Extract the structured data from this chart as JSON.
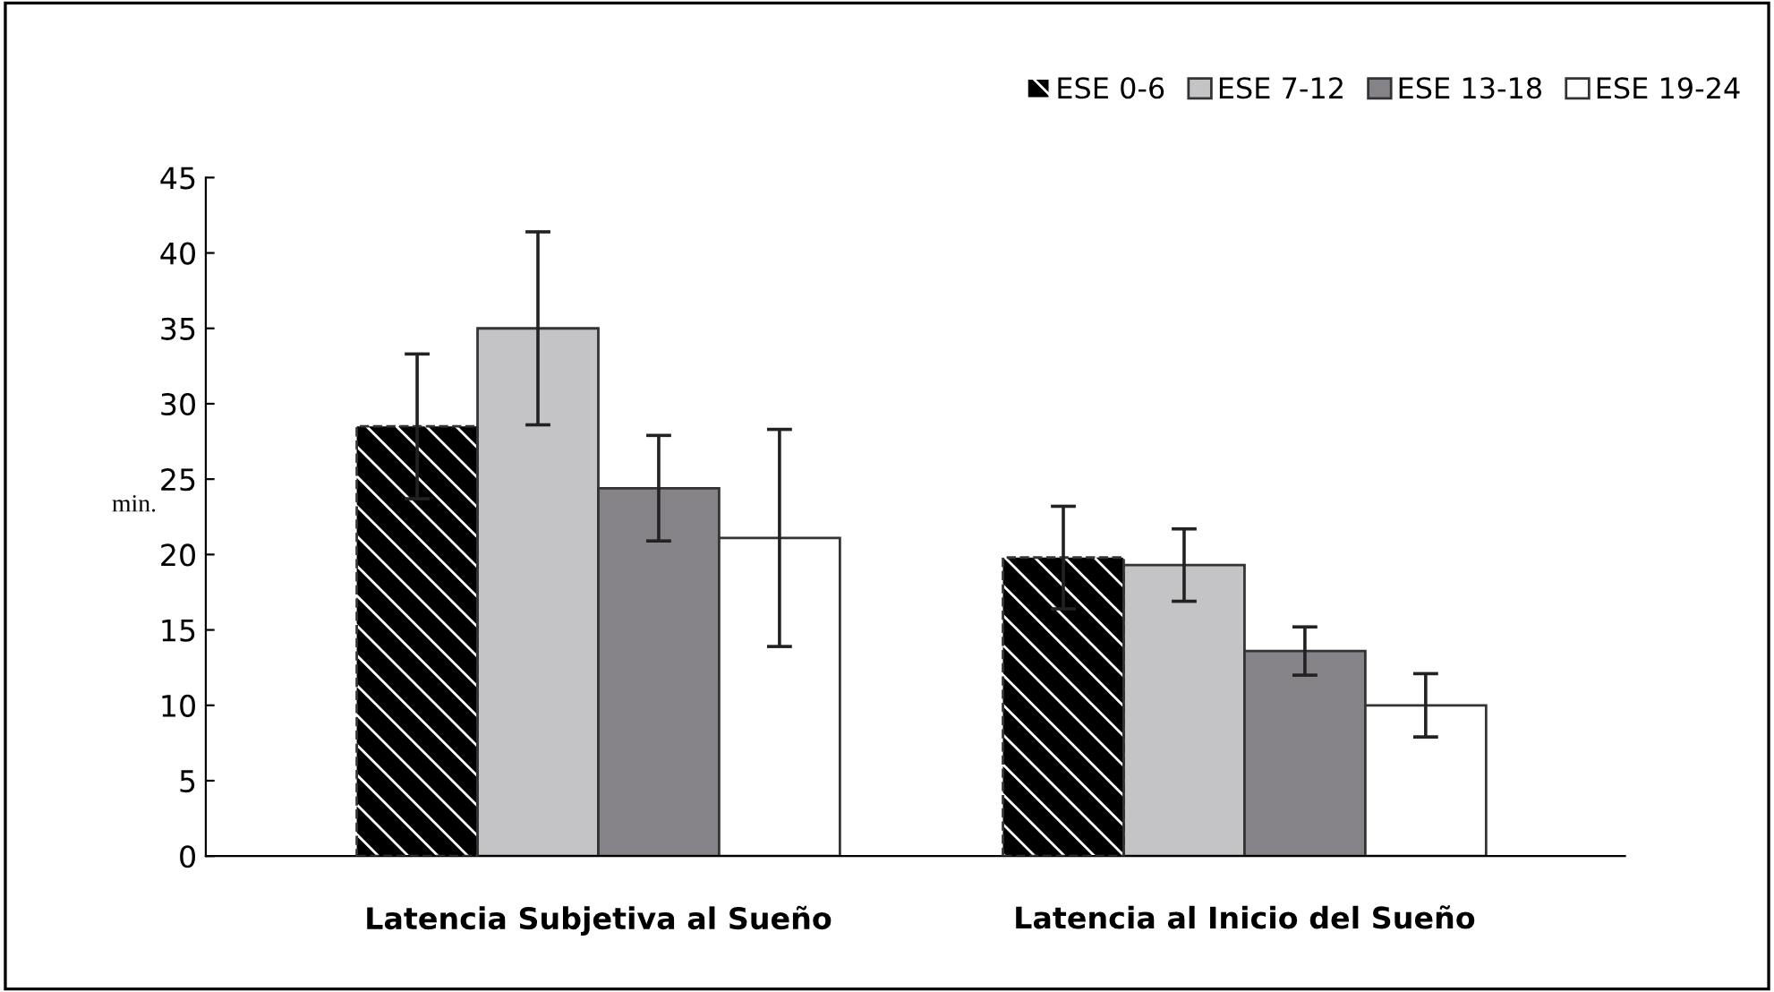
{
  "chart_data": {
    "type": "bar",
    "ylabel": "min.",
    "categories": [
      "Latencia Subjetiva al Sueño",
      "Latencia al Inicio del Sueño"
    ],
    "series": [
      {
        "name": "ESE 0-6",
        "color": "#000000",
        "values": [
          28.5,
          19.8
        ],
        "errors": [
          4.8,
          3.4
        ]
      },
      {
        "name": "ESE 7-12",
        "color": "#c4c3c6",
        "values": [
          35.0,
          19.3
        ],
        "errors": [
          6.4,
          2.4
        ]
      },
      {
        "name": "ESE 13-18",
        "color": "#858387",
        "values": [
          24.4,
          13.6
        ],
        "errors": [
          3.5,
          1.6
        ]
      },
      {
        "name": "ESE 19-24",
        "color": "#ffffff",
        "values": [
          21.1,
          10.0
        ],
        "errors": [
          7.2,
          2.1
        ]
      }
    ],
    "ylim": [
      0,
      45
    ],
    "yticks": [
      0,
      5,
      10,
      15,
      20,
      25,
      30,
      35,
      40,
      45
    ],
    "grid": false,
    "legend": "top right"
  }
}
